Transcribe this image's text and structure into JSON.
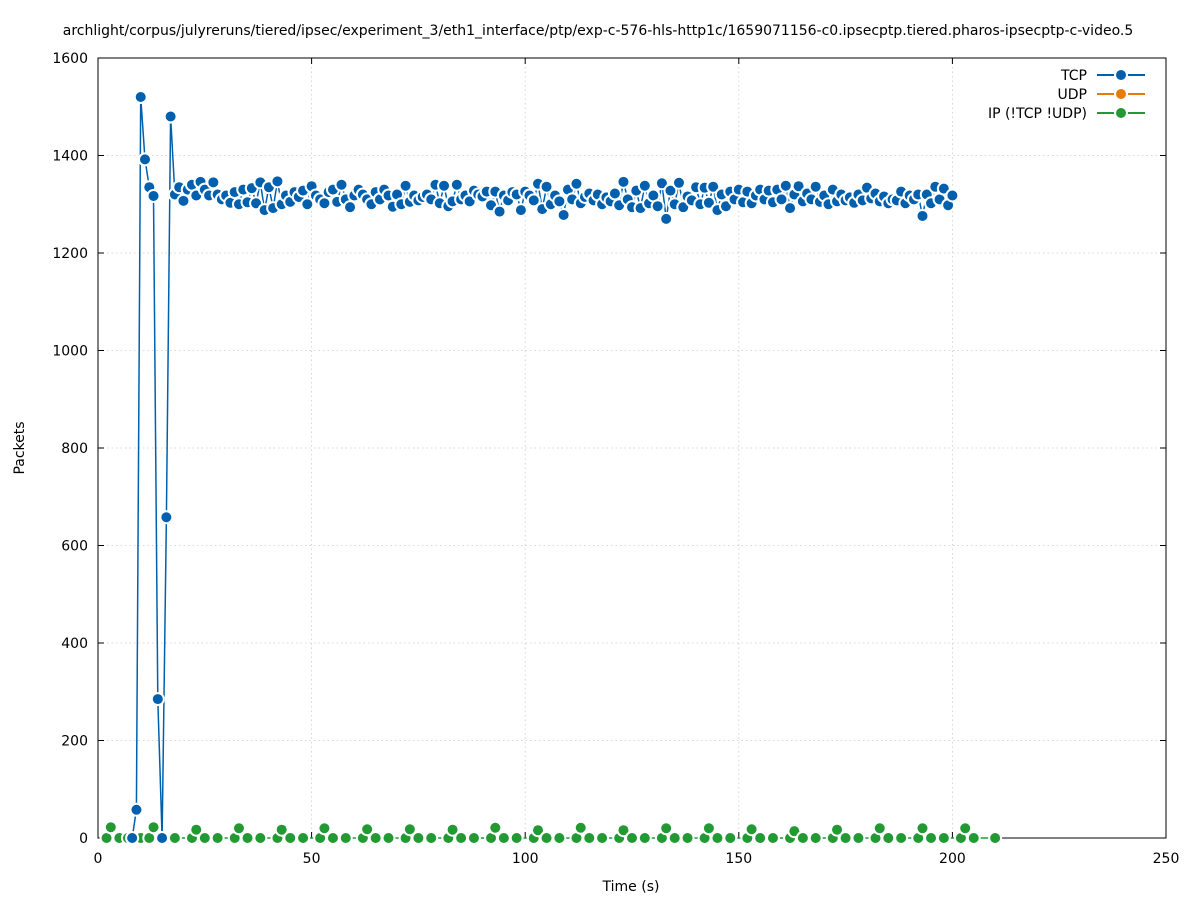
{
  "chart_data": {
    "type": "line",
    "title": "archlight/corpus/julyreruns/tiered/ipsec/experiment_3/eth1_interface/ptp/exp-c-576-hls-http1c/1659071156-c0.ipsecptp.tiered.pharos-ipsecptp-c-video.5",
    "xlabel": "Time (s)",
    "ylabel": "Packets",
    "xlim": [
      0,
      250
    ],
    "ylim": [
      0,
      1600
    ],
    "xticks": [
      0,
      50,
      100,
      150,
      200,
      250
    ],
    "yticks": [
      0,
      200,
      400,
      600,
      800,
      1000,
      1200,
      1400,
      1600
    ],
    "grid": true,
    "legend_position": "top-right",
    "series": [
      {
        "name": "TCP",
        "color": "#0060ad",
        "points": [
          [
            8,
            0
          ],
          [
            9,
            58
          ],
          [
            10,
            1520
          ],
          [
            11,
            1392
          ],
          [
            12,
            1335
          ],
          [
            13,
            1317
          ],
          [
            14,
            285
          ],
          [
            15,
            0
          ],
          [
            16,
            658
          ],
          [
            17,
            1480
          ],
          [
            18,
            1320
          ],
          [
            19,
            1335
          ],
          [
            20,
            1307
          ],
          [
            21,
            1330
          ],
          [
            22,
            1340
          ],
          [
            23,
            1318
          ],
          [
            24,
            1346
          ],
          [
            25,
            1330
          ],
          [
            26,
            1318
          ],
          [
            27,
            1345
          ],
          [
            28,
            1320
          ],
          [
            29,
            1310
          ],
          [
            30,
            1318
          ],
          [
            31,
            1303
          ],
          [
            32,
            1325
          ],
          [
            33,
            1300
          ],
          [
            34,
            1330
          ],
          [
            35,
            1304
          ],
          [
            36,
            1333
          ],
          [
            37,
            1302
          ],
          [
            38,
            1345
          ],
          [
            39,
            1288
          ],
          [
            40,
            1335
          ],
          [
            41,
            1292
          ],
          [
            42,
            1347
          ],
          [
            43,
            1300
          ],
          [
            44,
            1318
          ],
          [
            45,
            1305
          ],
          [
            46,
            1325
          ],
          [
            47,
            1315
          ],
          [
            48,
            1328
          ],
          [
            49,
            1300
          ],
          [
            50,
            1337
          ],
          [
            51,
            1318
          ],
          [
            52,
            1310
          ],
          [
            53,
            1302
          ],
          [
            54,
            1325
          ],
          [
            55,
            1330
          ],
          [
            56,
            1305
          ],
          [
            57,
            1340
          ],
          [
            58,
            1310
          ],
          [
            59,
            1294
          ],
          [
            60,
            1318
          ],
          [
            61,
            1330
          ],
          [
            62,
            1320
          ],
          [
            63,
            1310
          ],
          [
            64,
            1300
          ],
          [
            65,
            1325
          ],
          [
            66,
            1310
          ],
          [
            67,
            1330
          ],
          [
            68,
            1318
          ],
          [
            69,
            1295
          ],
          [
            70,
            1320
          ],
          [
            71,
            1300
          ],
          [
            72,
            1338
          ],
          [
            73,
            1305
          ],
          [
            74,
            1318
          ],
          [
            75,
            1308
          ],
          [
            76,
            1315
          ],
          [
            77,
            1320
          ],
          [
            78,
            1310
          ],
          [
            79,
            1340
          ],
          [
            80,
            1302
          ],
          [
            81,
            1338
          ],
          [
            82,
            1296
          ],
          [
            83,
            1306
          ],
          [
            84,
            1340
          ],
          [
            85,
            1310
          ],
          [
            86,
            1318
          ],
          [
            87,
            1306
          ],
          [
            88,
            1328
          ],
          [
            89,
            1320
          ],
          [
            90,
            1316
          ],
          [
            91,
            1326
          ],
          [
            92,
            1298
          ],
          [
            93,
            1326
          ],
          [
            94,
            1285
          ],
          [
            95,
            1318
          ],
          [
            96,
            1308
          ],
          [
            97,
            1325
          ],
          [
            98,
            1320
          ],
          [
            99,
            1288
          ],
          [
            100,
            1326
          ],
          [
            101,
            1318
          ],
          [
            102,
            1308
          ],
          [
            103,
            1342
          ],
          [
            104,
            1290
          ],
          [
            105,
            1336
          ],
          [
            106,
            1300
          ],
          [
            107,
            1318
          ],
          [
            108,
            1306
          ],
          [
            109,
            1278
          ],
          [
            110,
            1330
          ],
          [
            111,
            1310
          ],
          [
            112,
            1342
          ],
          [
            113,
            1302
          ],
          [
            114,
            1315
          ],
          [
            115,
            1322
          ],
          [
            116,
            1308
          ],
          [
            117,
            1320
          ],
          [
            118,
            1300
          ],
          [
            119,
            1314
          ],
          [
            120,
            1306
          ],
          [
            121,
            1322
          ],
          [
            122,
            1298
          ],
          [
            123,
            1346
          ],
          [
            124,
            1310
          ],
          [
            125,
            1294
          ],
          [
            126,
            1328
          ],
          [
            127,
            1292
          ],
          [
            128,
            1338
          ],
          [
            129,
            1302
          ],
          [
            130,
            1318
          ],
          [
            131,
            1296
          ],
          [
            132,
            1343
          ],
          [
            133,
            1270
          ],
          [
            134,
            1328
          ],
          [
            135,
            1300
          ],
          [
            136,
            1344
          ],
          [
            137,
            1294
          ],
          [
            138,
            1316
          ],
          [
            139,
            1308
          ],
          [
            140,
            1335
          ],
          [
            141,
            1300
          ],
          [
            142,
            1334
          ],
          [
            143,
            1303
          ],
          [
            144,
            1336
          ],
          [
            145,
            1288
          ],
          [
            146,
            1320
          ],
          [
            147,
            1296
          ],
          [
            148,
            1326
          ],
          [
            149,
            1310
          ],
          [
            150,
            1330
          ],
          [
            151,
            1304
          ],
          [
            152,
            1326
          ],
          [
            153,
            1302
          ],
          [
            154,
            1318
          ],
          [
            155,
            1330
          ],
          [
            156,
            1310
          ],
          [
            157,
            1328
          ],
          [
            158,
            1304
          ],
          [
            159,
            1330
          ],
          [
            160,
            1310
          ],
          [
            161,
            1338
          ],
          [
            162,
            1292
          ],
          [
            163,
            1320
          ],
          [
            164,
            1337
          ],
          [
            165,
            1306
          ],
          [
            166,
            1322
          ],
          [
            167,
            1310
          ],
          [
            168,
            1336
          ],
          [
            169,
            1305
          ],
          [
            170,
            1318
          ],
          [
            171,
            1300
          ],
          [
            172,
            1330
          ],
          [
            173,
            1306
          ],
          [
            174,
            1320
          ],
          [
            175,
            1308
          ],
          [
            176,
            1314
          ],
          [
            177,
            1303
          ],
          [
            178,
            1320
          ],
          [
            179,
            1308
          ],
          [
            180,
            1334
          ],
          [
            181,
            1312
          ],
          [
            182,
            1322
          ],
          [
            183,
            1306
          ],
          [
            184,
            1316
          ],
          [
            185,
            1302
          ],
          [
            186,
            1310
          ],
          [
            187,
            1308
          ],
          [
            188,
            1326
          ],
          [
            189,
            1302
          ],
          [
            190,
            1318
          ],
          [
            191,
            1310
          ],
          [
            192,
            1320
          ],
          [
            193,
            1276
          ],
          [
            194,
            1320
          ],
          [
            195,
            1302
          ],
          [
            196,
            1336
          ],
          [
            197,
            1310
          ],
          [
            198,
            1332
          ],
          [
            199,
            1298
          ],
          [
            200,
            1318
          ]
        ]
      },
      {
        "name": "UDP",
        "color": "#e87b00",
        "points": []
      },
      {
        "name": "IP (!TCP  !UDP)",
        "color": "#229933",
        "points": [
          [
            2,
            0
          ],
          [
            3,
            22
          ],
          [
            5,
            0
          ],
          [
            7,
            0
          ],
          [
            8,
            0
          ],
          [
            10,
            0
          ],
          [
            12,
            0
          ],
          [
            13,
            22
          ],
          [
            15,
            0
          ],
          [
            18,
            0
          ],
          [
            22,
            0
          ],
          [
            23,
            17
          ],
          [
            25,
            0
          ],
          [
            28,
            0
          ],
          [
            32,
            0
          ],
          [
            33,
            20
          ],
          [
            35,
            0
          ],
          [
            38,
            0
          ],
          [
            42,
            0
          ],
          [
            43,
            17
          ],
          [
            45,
            0
          ],
          [
            48,
            0
          ],
          [
            52,
            0
          ],
          [
            53,
            20
          ],
          [
            55,
            0
          ],
          [
            58,
            0
          ],
          [
            62,
            0
          ],
          [
            63,
            18
          ],
          [
            65,
            0
          ],
          [
            68,
            0
          ],
          [
            72,
            0
          ],
          [
            73,
            18
          ],
          [
            75,
            0
          ],
          [
            78,
            0
          ],
          [
            82,
            0
          ],
          [
            83,
            17
          ],
          [
            85,
            0
          ],
          [
            88,
            0
          ],
          [
            92,
            0
          ],
          [
            93,
            21
          ],
          [
            95,
            0
          ],
          [
            98,
            0
          ],
          [
            102,
            0
          ],
          [
            103,
            16
          ],
          [
            105,
            0
          ],
          [
            108,
            0
          ],
          [
            112,
            0
          ],
          [
            113,
            21
          ],
          [
            115,
            0
          ],
          [
            118,
            0
          ],
          [
            122,
            0
          ],
          [
            123,
            16
          ],
          [
            125,
            0
          ],
          [
            128,
            0
          ],
          [
            132,
            0
          ],
          [
            133,
            20
          ],
          [
            135,
            0
          ],
          [
            138,
            0
          ],
          [
            142,
            0
          ],
          [
            143,
            20
          ],
          [
            145,
            0
          ],
          [
            148,
            0
          ],
          [
            152,
            0
          ],
          [
            153,
            18
          ],
          [
            155,
            0
          ],
          [
            158,
            0
          ],
          [
            162,
            0
          ],
          [
            163,
            14
          ],
          [
            165,
            0
          ],
          [
            168,
            0
          ],
          [
            172,
            0
          ],
          [
            173,
            17
          ],
          [
            175,
            0
          ],
          [
            178,
            0
          ],
          [
            182,
            0
          ],
          [
            183,
            20
          ],
          [
            185,
            0
          ],
          [
            188,
            0
          ],
          [
            192,
            0
          ],
          [
            193,
            20
          ],
          [
            195,
            0
          ],
          [
            198,
            0
          ],
          [
            202,
            0
          ],
          [
            203,
            20
          ],
          [
            205,
            0
          ],
          [
            210,
            0
          ]
        ]
      }
    ]
  }
}
